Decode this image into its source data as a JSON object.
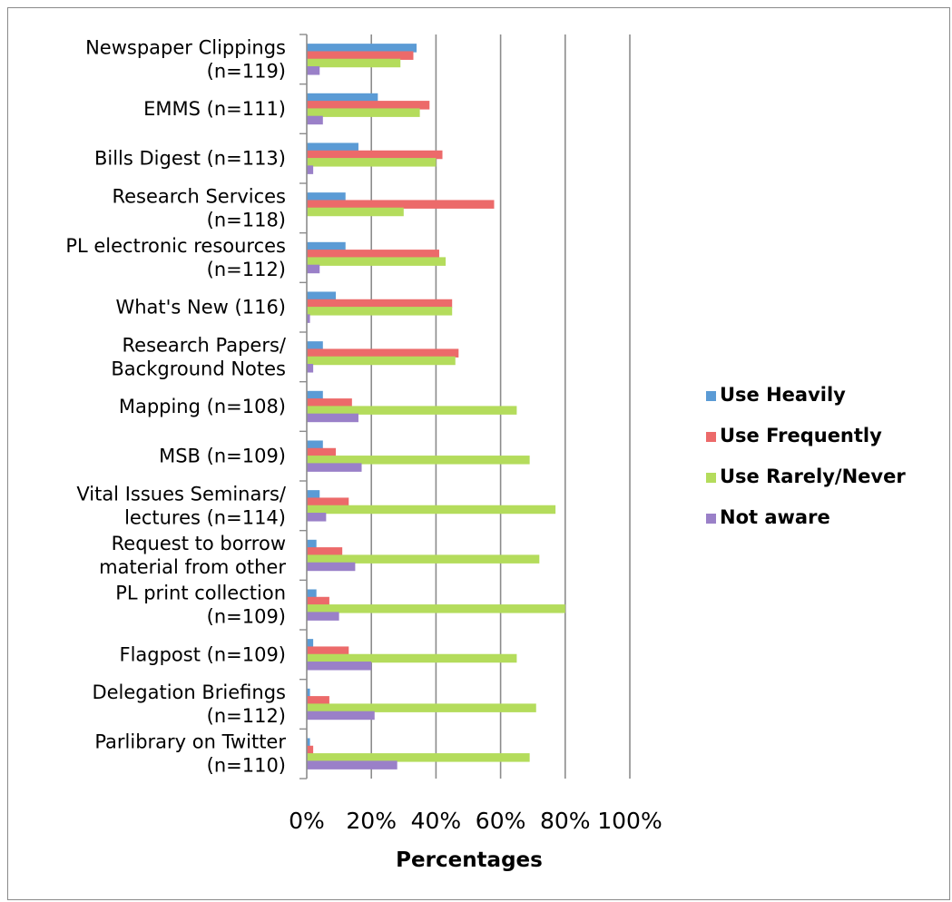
{
  "chart_data": {
    "type": "bar",
    "orientation": "horizontal",
    "title": "",
    "xlabel": "Percentages",
    "ylabel": "",
    "xlim": [
      0,
      100
    ],
    "x_ticks": [
      "0%",
      "20%",
      "40%",
      "60%",
      "80%",
      "100%"
    ],
    "grid": true,
    "legend_position": "right",
    "categories": [
      "Newspaper Clippings\n(n=119)",
      "EMMS (n=111)",
      "Bills Digest (n=113)",
      "Research Services\n(n=118)",
      "PL electronic resources\n(n=112)",
      "What's New (116)",
      "Research Papers/\nBackground Notes",
      "Mapping (n=108)",
      "MSB (n=109)",
      "Vital Issues Seminars/\nlectures (n=114)",
      "Request to borrow\nmaterial from other",
      "PL print collection\n(n=109)",
      "Flagpost (n=109)",
      "Delegation Briefings\n(n=112)",
      "Parlibrary on Twitter\n(n=110)"
    ],
    "series": [
      {
        "name": "Use Heavily",
        "color": "#5b9bd5",
        "values": [
          34,
          22,
          16,
          12,
          12,
          9,
          5,
          5,
          5,
          4,
          3,
          3,
          2,
          1,
          1
        ]
      },
      {
        "name": "Use Frequently",
        "color": "#ec6a6a",
        "values": [
          33,
          38,
          42,
          58,
          41,
          45,
          47,
          14,
          9,
          13,
          11,
          7,
          13,
          7,
          2
        ]
      },
      {
        "name": "Use Rarely/Never",
        "color": "#b4dc5c",
        "values": [
          29,
          35,
          40,
          30,
          43,
          45,
          46,
          65,
          69,
          77,
          72,
          80,
          65,
          71,
          69
        ]
      },
      {
        "name": "Not aware",
        "color": "#9a80c8",
        "values": [
          4,
          5,
          2,
          0,
          4,
          1,
          2,
          16,
          17,
          6,
          15,
          10,
          20,
          21,
          28
        ]
      }
    ]
  }
}
